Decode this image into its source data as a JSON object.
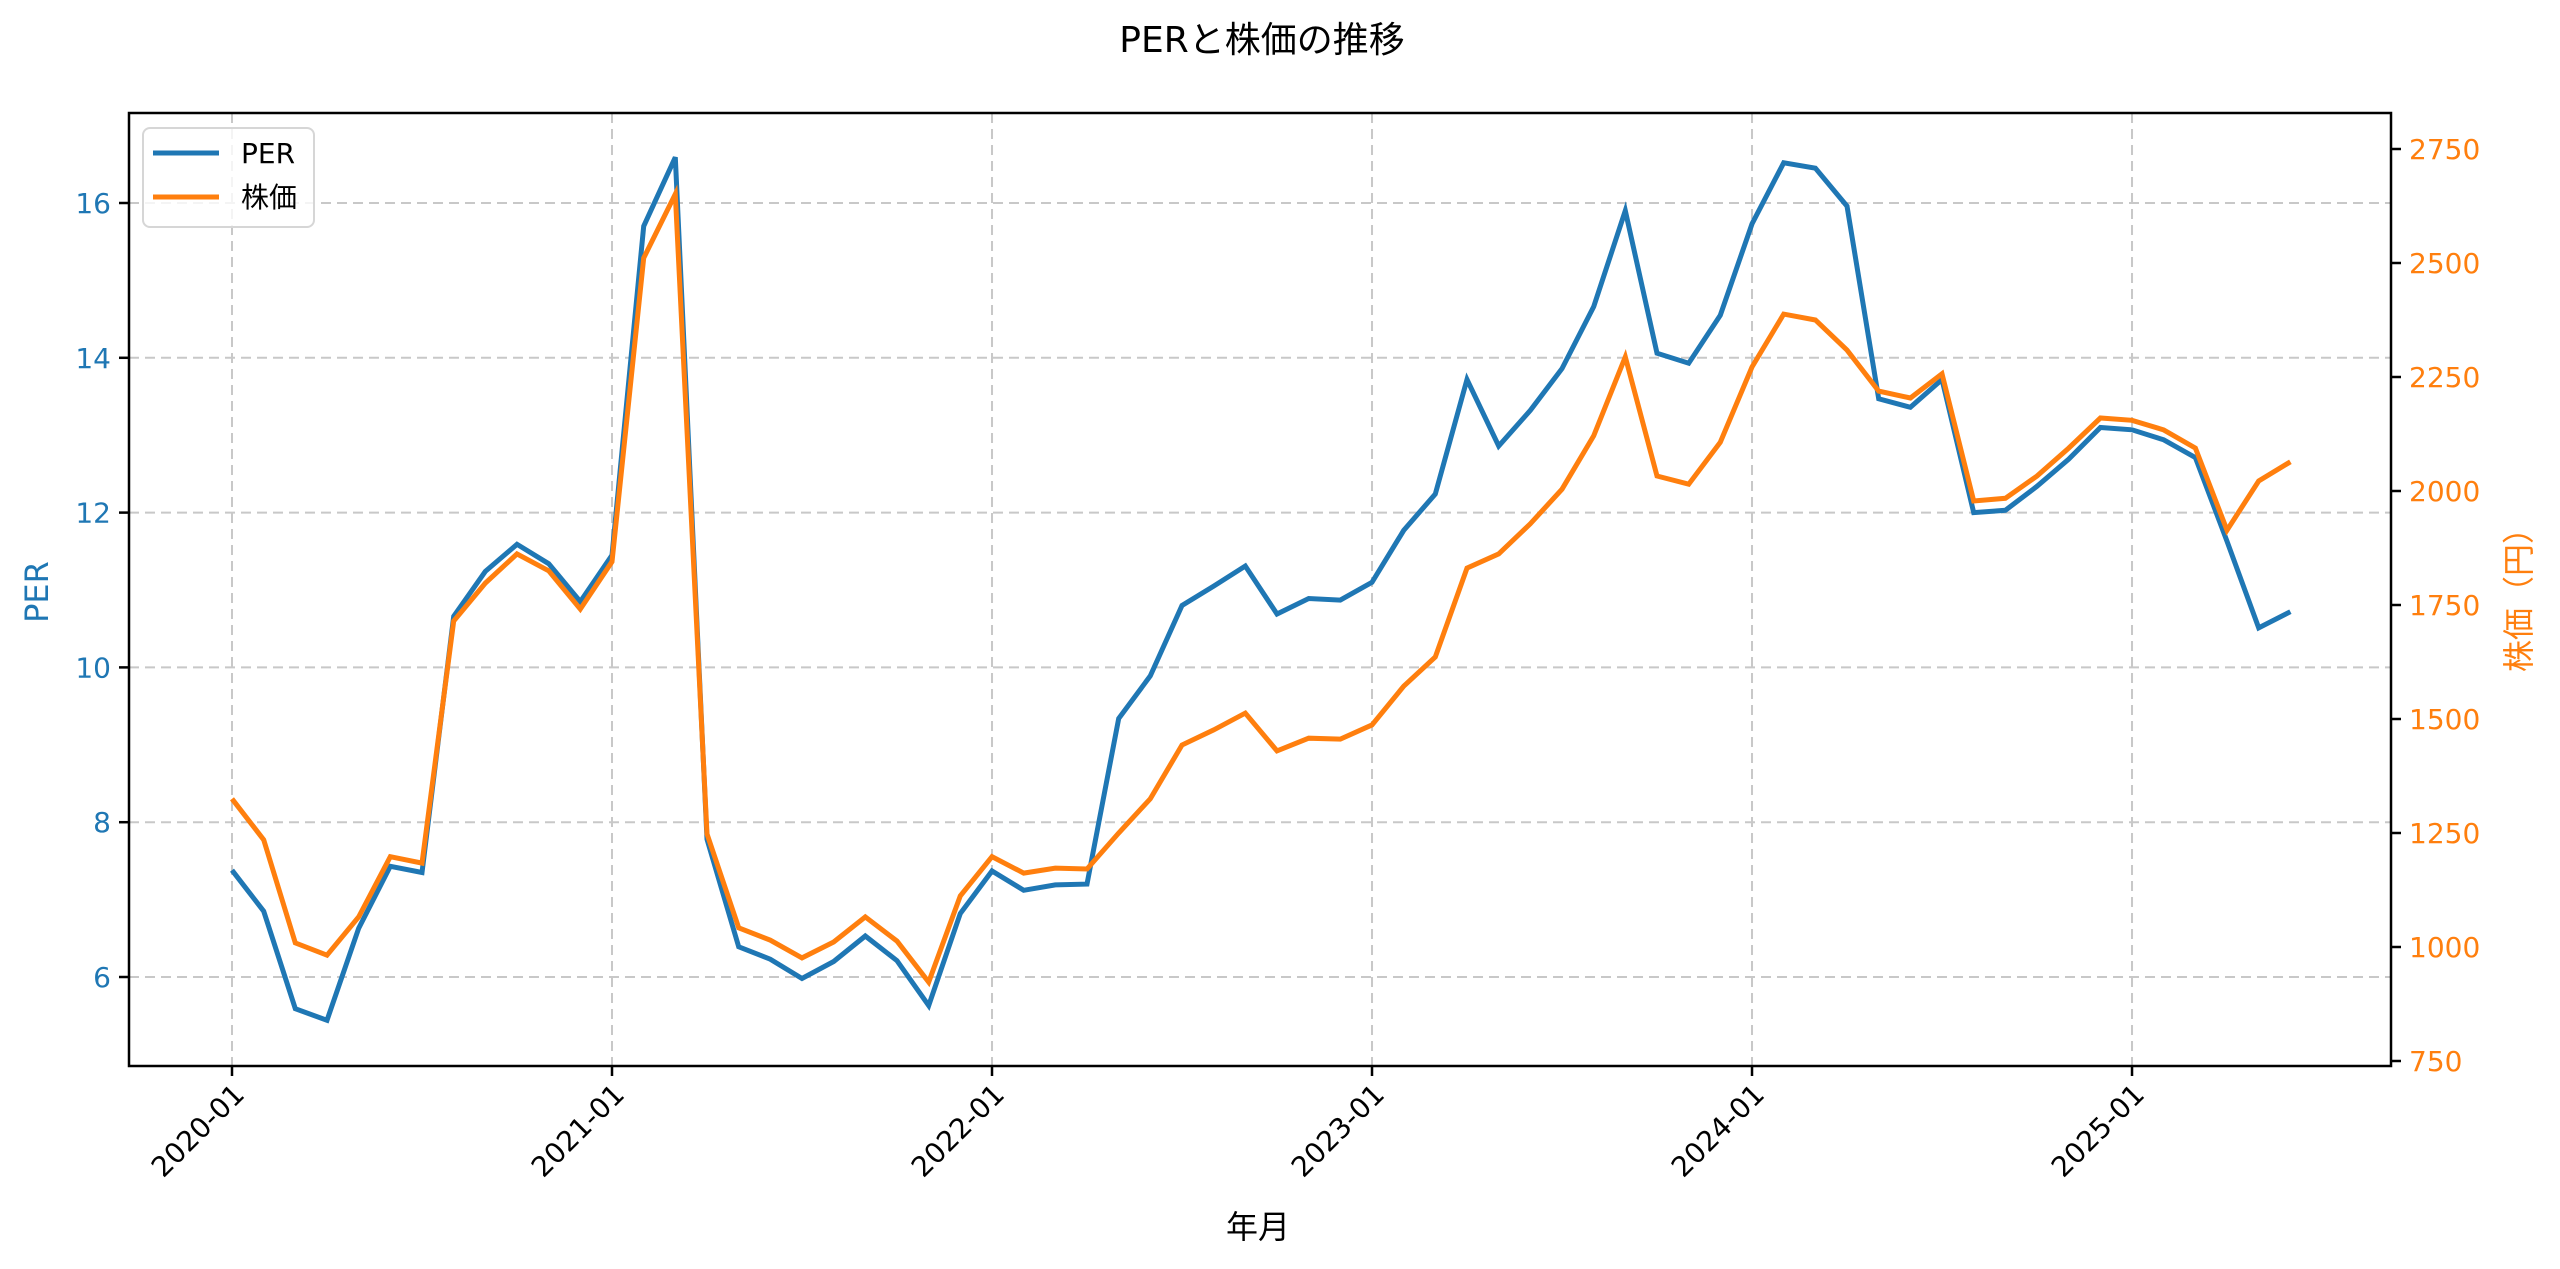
{
  "chart_data": {
    "type": "line",
    "title": "PERと株価の推移",
    "xlabel": "年月",
    "ylabel": "PER",
    "ylabel_right": "株価（円）",
    "x_tick_labels": [
      "2020-01",
      "2021-01",
      "2022-01",
      "2023-01",
      "2024-01",
      "2025-01"
    ],
    "x_tick_indices": [
      0,
      12,
      24,
      36,
      48,
      60
    ],
    "y_ticks_left": [
      6,
      8,
      10,
      12,
      16,
      14
    ],
    "y_ticks_right": [
      750,
      1000,
      1250,
      1500,
      1750,
      2000,
      2250,
      2500,
      2750
    ],
    "ylim_left": [
      4.85,
      17.16
    ],
    "ylim_right": [
      727,
      2854
    ],
    "grid": true,
    "legend_position": "upper left",
    "x": [
      "2020-01",
      "2020-02",
      "2020-03",
      "2020-04",
      "2020-05",
      "2020-06",
      "2020-07",
      "2020-08",
      "2020-09",
      "2020-10",
      "2020-11",
      "2020-12",
      "2021-01",
      "2021-02",
      "2021-03",
      "2021-04",
      "2021-05",
      "2021-06",
      "2021-07",
      "2021-08",
      "2021-09",
      "2021-10",
      "2021-11",
      "2021-12",
      "2022-01",
      "2022-02",
      "2022-03",
      "2022-04",
      "2022-05",
      "2022-06",
      "2022-07",
      "2022-08",
      "2022-09",
      "2022-10",
      "2022-11",
      "2022-12",
      "2023-01",
      "2023-02",
      "2023-03",
      "2023-04",
      "2023-05",
      "2023-06",
      "2023-07",
      "2023-08",
      "2023-09",
      "2023-10",
      "2023-11",
      "2023-12",
      "2024-01",
      "2024-02",
      "2024-03",
      "2024-04",
      "2024-05",
      "2024-06",
      "2024-07",
      "2024-08",
      "2024-09",
      "2024-10",
      "2024-11",
      "2024-12",
      "2025-01",
      "2025-02",
      "2025-03",
      "2025-04",
      "2025-05",
      "2025-06"
    ],
    "series": [
      {
        "name": "PER",
        "axis": "left",
        "color": "#1f77b4",
        "values": [
          7.38,
          6.85,
          5.59,
          5.44,
          6.63,
          7.43,
          7.35,
          10.66,
          11.24,
          11.59,
          11.34,
          10.85,
          11.45,
          15.7,
          16.59,
          7.78,
          6.39,
          6.23,
          5.98,
          6.2,
          6.53,
          6.21,
          5.63,
          6.82,
          7.37,
          7.12,
          7.19,
          7.2,
          9.34,
          9.89,
          10.8,
          11.05,
          11.31,
          10.69,
          10.89,
          10.87,
          11.1,
          11.77,
          12.24,
          13.72,
          12.86,
          13.32,
          13.86,
          14.66,
          15.9,
          14.06,
          13.93,
          14.55,
          15.73,
          16.52,
          16.45,
          15.96,
          13.47,
          13.36,
          13.72,
          12.0,
          12.03,
          12.34,
          12.69,
          13.1,
          13.07,
          12.94,
          12.71,
          11.63,
          10.51,
          10.72
        ]
      },
      {
        "name": "株価",
        "axis": "right",
        "color": "#ff7f0e",
        "values": [
          1325,
          1235,
          1009,
          982,
          1066,
          1198,
          1184,
          1715,
          1798,
          1862,
          1825,
          1741,
          1845,
          2511,
          2651,
          1248,
          1042,
          1015,
          976,
          1011,
          1066,
          1013,
          923,
          1112,
          1198,
          1162,
          1173,
          1171,
          1250,
          1325,
          1443,
          1476,
          1513,
          1430,
          1458,
          1456,
          1487,
          1572,
          1636,
          1831,
          1862,
          1928,
          2004,
          2121,
          2294,
          2033,
          2015,
          2107,
          2272,
          2388,
          2375,
          2309,
          2219,
          2204,
          2257,
          1978,
          1984,
          2033,
          2094,
          2160,
          2155,
          2134,
          2094,
          1914,
          2022,
          2064
        ]
      }
    ]
  },
  "legend": {
    "items": [
      {
        "label": "PER",
        "color": "#1f77b4"
      },
      {
        "label": "株価",
        "color": "#ff7f0e"
      }
    ]
  },
  "colors": {
    "per": "#1f77b4",
    "price": "#ff7f0e",
    "grid": "#c8c8c8",
    "axis": "#000000"
  }
}
